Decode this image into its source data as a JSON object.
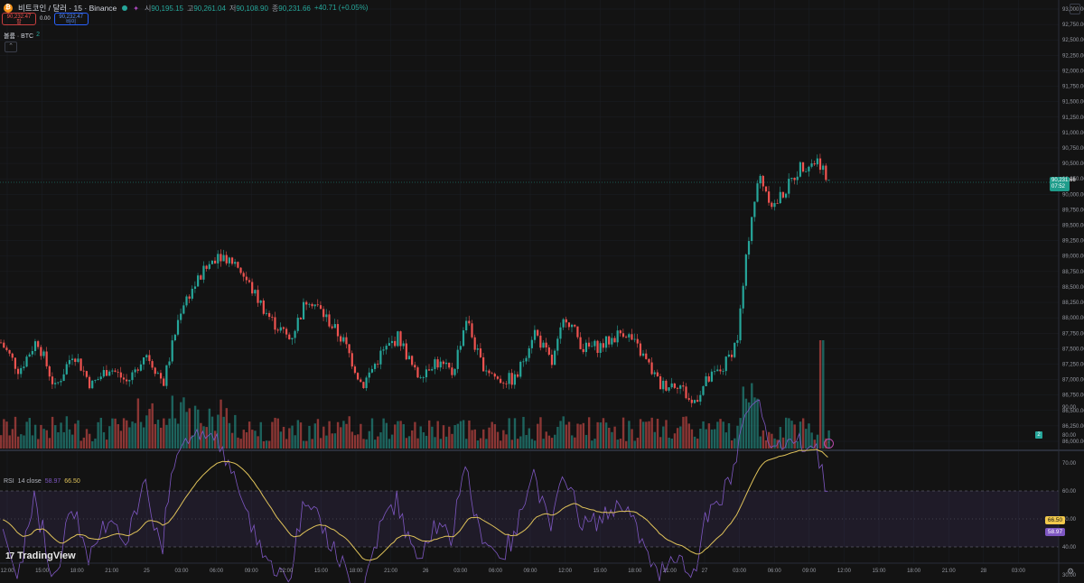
{
  "header": {
    "coin_symbol": "₿",
    "title": "비트코인 / 달러 · 15 · Binance",
    "ohlc": [
      {
        "label": "시",
        "value": "90,195.15"
      },
      {
        "label": "고",
        "value": "90,261.04"
      },
      {
        "label": "저",
        "value": "90,108.90"
      },
      {
        "label": "종",
        "value": "90,231.66"
      }
    ],
    "change": "+40.71 (+0.05%)",
    "sell_price": "90,232.47",
    "sell_label": "팔",
    "spread": "0.00",
    "buy_price": "90,232.47",
    "buy_label": "바이",
    "volume_label": "볼륨 · BTC",
    "volume_value": "2"
  },
  "price_axis": {
    "labels": [
      "93,000.00",
      "92,750.00",
      "92,500.00",
      "92,250.00",
      "92,000.00",
      "91,750.00",
      "91,500.00",
      "91,250.00",
      "91,000.00",
      "90,750.00",
      "90,500.00",
      "90,250.00",
      "90,000.00",
      "89,750.00",
      "89,500.00",
      "89,250.00",
      "89,000.00",
      "88,750.00",
      "88,500.00",
      "88,250.00",
      "88,000.00",
      "87,750.00",
      "87,500.00",
      "87,250.00",
      "87,000.00",
      "86,750.00",
      "86,500.00",
      "86,250.00",
      "86,000.00"
    ],
    "last_price": "90,231.66",
    "countdown": "07:52"
  },
  "rsi": {
    "label": "RSI",
    "params": "14 close",
    "value": "58.97",
    "ma_value": "66.50",
    "axis_labels": [
      "90.00",
      "80.00",
      "70.00",
      "60.00",
      "50.00",
      "40.00",
      "30.00"
    ]
  },
  "time_axis": {
    "labels": [
      "12:00",
      "15:00",
      "18:00",
      "21:00",
      "25",
      "03:00",
      "06:00",
      "09:00",
      "12:00",
      "15:00",
      "18:00",
      "21:00",
      "26",
      "03:00",
      "06:00",
      "09:00",
      "12:00",
      "15:00",
      "18:00",
      "21:00",
      "27",
      "03:00",
      "06:00",
      "09:00",
      "12:00",
      "15:00",
      "18:00",
      "21:00",
      "28",
      "03:00"
    ]
  },
  "branding": {
    "logo": "17",
    "name": "TradingView"
  },
  "colors": {
    "up": "#26a69a",
    "down": "#ef5350",
    "rsi": "#7e57c2",
    "rsi_ma": "#e0c35a",
    "background": "#131313"
  },
  "chart_data": {
    "type": "candlestick",
    "symbol": "BTCUSD",
    "interval": "15",
    "ylim": [
      86000,
      93000
    ],
    "close_path": [
      {
        "t": 0,
        "p": 87600
      },
      {
        "t": 20,
        "p": 87150
      },
      {
        "t": 40,
        "p": 87650
      },
      {
        "t": 60,
        "p": 86850
      },
      {
        "t": 80,
        "p": 87450
      },
      {
        "t": 100,
        "p": 86900
      },
      {
        "t": 120,
        "p": 87200
      },
      {
        "t": 140,
        "p": 86950
      },
      {
        "t": 160,
        "p": 87450
      },
      {
        "t": 180,
        "p": 86950
      },
      {
        "t": 200,
        "p": 88200
      },
      {
        "t": 220,
        "p": 88650
      },
      {
        "t": 240,
        "p": 89050
      },
      {
        "t": 260,
        "p": 88900
      },
      {
        "t": 280,
        "p": 88400
      },
      {
        "t": 300,
        "p": 87950
      },
      {
        "t": 320,
        "p": 87650
      },
      {
        "t": 340,
        "p": 88350
      },
      {
        "t": 360,
        "p": 88000
      },
      {
        "t": 380,
        "p": 87600
      },
      {
        "t": 400,
        "p": 86900
      },
      {
        "t": 420,
        "p": 87400
      },
      {
        "t": 440,
        "p": 87700
      },
      {
        "t": 460,
        "p": 87050
      },
      {
        "t": 480,
        "p": 87300
      },
      {
        "t": 500,
        "p": 87100
      },
      {
        "t": 515,
        "p": 88000
      },
      {
        "t": 530,
        "p": 87300
      },
      {
        "t": 550,
        "p": 87000
      },
      {
        "t": 570,
        "p": 87000
      },
      {
        "t": 590,
        "p": 87800
      },
      {
        "t": 610,
        "p": 87250
      },
      {
        "t": 625,
        "p": 88050
      },
      {
        "t": 645,
        "p": 87500
      },
      {
        "t": 665,
        "p": 87550
      },
      {
        "t": 690,
        "p": 87800
      },
      {
        "t": 710,
        "p": 87400
      },
      {
        "t": 730,
        "p": 86900
      },
      {
        "t": 750,
        "p": 86950
      },
      {
        "t": 765,
        "p": 86600
      },
      {
        "t": 780,
        "p": 86950
      },
      {
        "t": 800,
        "p": 87200
      },
      {
        "t": 815,
        "p": 87650
      },
      {
        "t": 830,
        "p": 89600
      },
      {
        "t": 840,
        "p": 90300
      },
      {
        "t": 855,
        "p": 89800
      },
      {
        "t": 870,
        "p": 90100
      },
      {
        "t": 885,
        "p": 90450
      },
      {
        "t": 905,
        "p": 90550
      },
      {
        "t": 918,
        "p": 90232
      }
    ],
    "rsi_current": 58.97,
    "rsi_ma_current": 66.5,
    "rsi_levels": [
      70,
      50,
      30
    ]
  }
}
